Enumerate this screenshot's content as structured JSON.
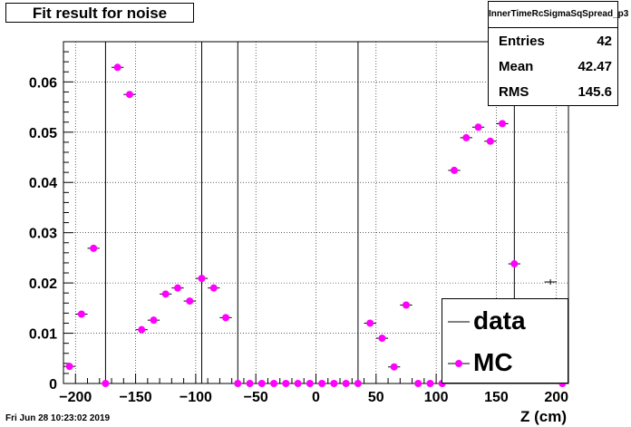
{
  "title": "Fit result for noise",
  "stats": {
    "name": "InnerTimeRcSigmaSqSpread_p3",
    "rows": [
      {
        "label": "Entries",
        "value": "42"
      },
      {
        "label": "Mean",
        "value": "42.47"
      },
      {
        "label": "RMS",
        "value": "145.6"
      }
    ]
  },
  "footer": "Fri Jun 28 10:23:02 2019",
  "chart_data": {
    "type": "scatter",
    "xlabel": "Z (cm)",
    "ylabel": "",
    "xlim": [
      -210,
      210
    ],
    "ylim": [
      0,
      0.068
    ],
    "grid": true,
    "legend_position": "bottom-right",
    "xticks": [
      -200,
      -150,
      -100,
      -50,
      0,
      50,
      100,
      150,
      200
    ],
    "xtick_labels": [
      "−200",
      "−150",
      "−100",
      "−50",
      "0",
      "50",
      "100",
      "150",
      "200"
    ],
    "yticks": [
      0,
      0.01,
      0.02,
      0.03,
      0.04,
      0.05,
      0.06
    ],
    "ytick_labels": [
      "0",
      "0.01",
      "0.02",
      "0.03",
      "0.04",
      "0.05",
      "0.06"
    ],
    "colors": {
      "data": "#000000",
      "mc": "#ff00ff"
    },
    "series": [
      {
        "name": "data",
        "style": "vertical-lines",
        "points": [
          {
            "x": -175,
            "y": 0.068
          },
          {
            "x": -95,
            "y": 0.068
          },
          {
            "x": -65,
            "y": 0.068
          },
          {
            "x": 35,
            "y": 0.068
          },
          {
            "x": 165,
            "y": 0.068
          },
          {
            "x": 195,
            "y": 0.0202
          }
        ]
      },
      {
        "name": "MC",
        "style": "markers",
        "points": [
          {
            "x": -205,
            "y": 0.0034
          },
          {
            "x": -195,
            "y": 0.0138
          },
          {
            "x": -185,
            "y": 0.0269
          },
          {
            "x": -175,
            "y": 0.0
          },
          {
            "x": -165,
            "y": 0.0629
          },
          {
            "x": -155,
            "y": 0.0575
          },
          {
            "x": -145,
            "y": 0.0107
          },
          {
            "x": -135,
            "y": 0.0126
          },
          {
            "x": -125,
            "y": 0.0178
          },
          {
            "x": -115,
            "y": 0.019
          },
          {
            "x": -105,
            "y": 0.0164
          },
          {
            "x": -95,
            "y": 0.0209
          },
          {
            "x": -85,
            "y": 0.019
          },
          {
            "x": -75,
            "y": 0.0131
          },
          {
            "x": -65,
            "y": 0.0
          },
          {
            "x": -55,
            "y": 0.0
          },
          {
            "x": -45,
            "y": 0.0
          },
          {
            "x": -35,
            "y": 0.0
          },
          {
            "x": -25,
            "y": 0.0
          },
          {
            "x": -15,
            "y": 0.0
          },
          {
            "x": -5,
            "y": 0.0
          },
          {
            "x": 5,
            "y": 0.0
          },
          {
            "x": 15,
            "y": 0.0
          },
          {
            "x": 25,
            "y": 0.0
          },
          {
            "x": 35,
            "y": 0.0
          },
          {
            "x": 45,
            "y": 0.012
          },
          {
            "x": 55,
            "y": 0.009
          },
          {
            "x": 65,
            "y": 0.0033
          },
          {
            "x": 75,
            "y": 0.0156
          },
          {
            "x": 85,
            "y": 0.0
          },
          {
            "x": 95,
            "y": 0.0
          },
          {
            "x": 105,
            "y": 0.0
          },
          {
            "x": 115,
            "y": 0.0424
          },
          {
            "x": 125,
            "y": 0.0489
          },
          {
            "x": 135,
            "y": 0.051
          },
          {
            "x": 145,
            "y": 0.0482
          },
          {
            "x": 155,
            "y": 0.0517
          },
          {
            "x": 165,
            "y": 0.0238
          },
          {
            "x": 205,
            "y": 0.0
          }
        ]
      }
    ]
  }
}
